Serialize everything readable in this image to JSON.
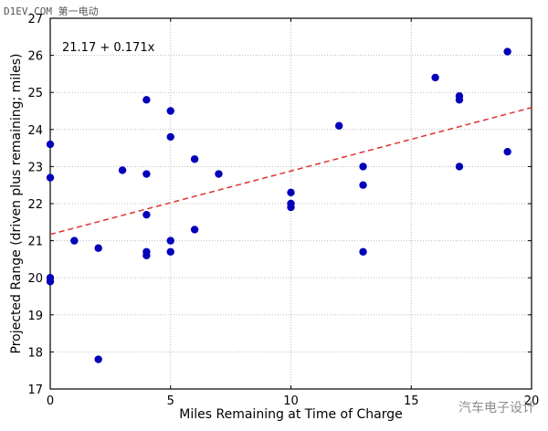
{
  "watermarks": {
    "top_left": "D1EV.COM 第一电动",
    "bottom_right": "汽车电子设计"
  },
  "chart_data": {
    "type": "scatter",
    "title": "",
    "xlabel": "Miles Remaining at Time of Charge",
    "ylabel": "Projected Range (driven plus remaining; miles)",
    "xlim": [
      0,
      20
    ],
    "ylim": [
      17,
      27
    ],
    "xticks": [
      0,
      5,
      10,
      15,
      20
    ],
    "yticks": [
      17,
      18,
      19,
      20,
      21,
      22,
      23,
      24,
      25,
      26,
      27
    ],
    "grid": true,
    "annotation": "21.17 + 0.171x",
    "fit": {
      "intercept": 21.17,
      "slope": 0.171
    },
    "colors": {
      "points": "#0000bb",
      "fit_line": "#e03030",
      "grid": "#bbbbbb"
    },
    "points": [
      [
        0,
        23.6
      ],
      [
        0,
        22.7
      ],
      [
        0,
        20.0
      ],
      [
        0,
        19.9
      ],
      [
        1,
        21.0
      ],
      [
        2,
        20.8
      ],
      [
        2,
        17.8
      ],
      [
        3,
        22.9
      ],
      [
        4,
        24.8
      ],
      [
        4,
        22.8
      ],
      [
        4,
        21.7
      ],
      [
        4,
        20.7
      ],
      [
        4,
        20.6
      ],
      [
        5,
        24.5
      ],
      [
        5,
        23.8
      ],
      [
        5,
        21.0
      ],
      [
        5,
        20.7
      ],
      [
        6,
        23.2
      ],
      [
        6,
        21.3
      ],
      [
        7,
        22.8
      ],
      [
        10,
        22.3
      ],
      [
        10,
        22.0
      ],
      [
        10,
        21.9
      ],
      [
        12,
        24.1
      ],
      [
        13,
        23.0
      ],
      [
        13,
        22.5
      ],
      [
        13,
        20.7
      ],
      [
        16,
        25.4
      ],
      [
        17,
        24.9
      ],
      [
        17,
        24.8
      ],
      [
        17,
        23.0
      ],
      [
        19,
        26.1
      ],
      [
        19,
        23.4
      ]
    ]
  }
}
